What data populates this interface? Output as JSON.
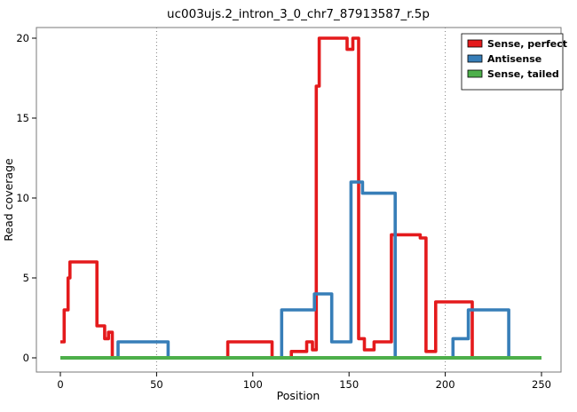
{
  "chart_data": {
    "type": "line",
    "title": "uc003ujs.2_intron_3_0_chr7_87913587_r.5p",
    "xlabel": "Position",
    "ylabel": "Read coverage",
    "xticks": [
      0,
      50,
      100,
      150,
      200,
      250
    ],
    "yticks": [
      0,
      5,
      10,
      15,
      20
    ],
    "xlim": [
      -13,
      262
    ],
    "ylim": [
      -0.9,
      20.9
    ],
    "grid": false,
    "legend_position": "top-right",
    "panel_border_color": "#7a7a7a",
    "background_color": "#ffffff",
    "reference_lines": {
      "x": [
        50,
        200
      ],
      "style": "dotted",
      "color": "#808080"
    },
    "series": [
      {
        "name": "Sense, perfect",
        "color": "#e41a1c",
        "width": 3.6,
        "points": [
          [
            0,
            1
          ],
          [
            2,
            1
          ],
          [
            2,
            3
          ],
          [
            4,
            3
          ],
          [
            4,
            5
          ],
          [
            5,
            5
          ],
          [
            5,
            6
          ],
          [
            19,
            6
          ],
          [
            19,
            2
          ],
          [
            23,
            2
          ],
          [
            23,
            1.2
          ],
          [
            25,
            1.2
          ],
          [
            25,
            1.6
          ],
          [
            27,
            1.6
          ],
          [
            27,
            0
          ],
          [
            87,
            0
          ],
          [
            87,
            1
          ],
          [
            110,
            1
          ],
          [
            110,
            0
          ],
          [
            120,
            0
          ],
          [
            120,
            0.4
          ],
          [
            128,
            0.4
          ],
          [
            128,
            1
          ],
          [
            131,
            1
          ],
          [
            131,
            0.5
          ],
          [
            133,
            0.5
          ],
          [
            133,
            17
          ],
          [
            134.5,
            17
          ],
          [
            134.5,
            20
          ],
          [
            149,
            20
          ],
          [
            149,
            19.3
          ],
          [
            152,
            19.3
          ],
          [
            152,
            20
          ],
          [
            155,
            20
          ],
          [
            155,
            1.2
          ],
          [
            158,
            1.2
          ],
          [
            158,
            0.5
          ],
          [
            163,
            0.5
          ],
          [
            163,
            1
          ],
          [
            172,
            1
          ],
          [
            172,
            7.7
          ],
          [
            187,
            7.7
          ],
          [
            187,
            7.5
          ],
          [
            190,
            7.5
          ],
          [
            190,
            0.4
          ],
          [
            195,
            0.4
          ],
          [
            195,
            3.5
          ],
          [
            214,
            3.5
          ],
          [
            214,
            0
          ],
          [
            250,
            0
          ]
        ]
      },
      {
        "name": "Antisense",
        "color": "#377eb8",
        "width": 3.6,
        "points": [
          [
            0,
            0
          ],
          [
            30,
            0
          ],
          [
            30,
            1
          ],
          [
            56,
            1
          ],
          [
            56,
            0
          ],
          [
            115,
            0
          ],
          [
            115,
            3
          ],
          [
            132,
            3
          ],
          [
            132,
            4
          ],
          [
            141,
            4
          ],
          [
            141,
            1
          ],
          [
            151,
            1
          ],
          [
            151,
            11
          ],
          [
            157,
            11
          ],
          [
            157,
            10.3
          ],
          [
            174,
            10.3
          ],
          [
            174,
            0
          ],
          [
            204,
            0
          ],
          [
            204,
            1.2
          ],
          [
            212,
            1.2
          ],
          [
            212,
            3
          ],
          [
            233,
            3
          ],
          [
            233,
            0
          ],
          [
            250,
            0
          ]
        ]
      },
      {
        "name": "Sense, tailed",
        "color": "#4daf4a",
        "width": 4,
        "points": [
          [
            0,
            0
          ],
          [
            250,
            0
          ]
        ]
      }
    ]
  }
}
